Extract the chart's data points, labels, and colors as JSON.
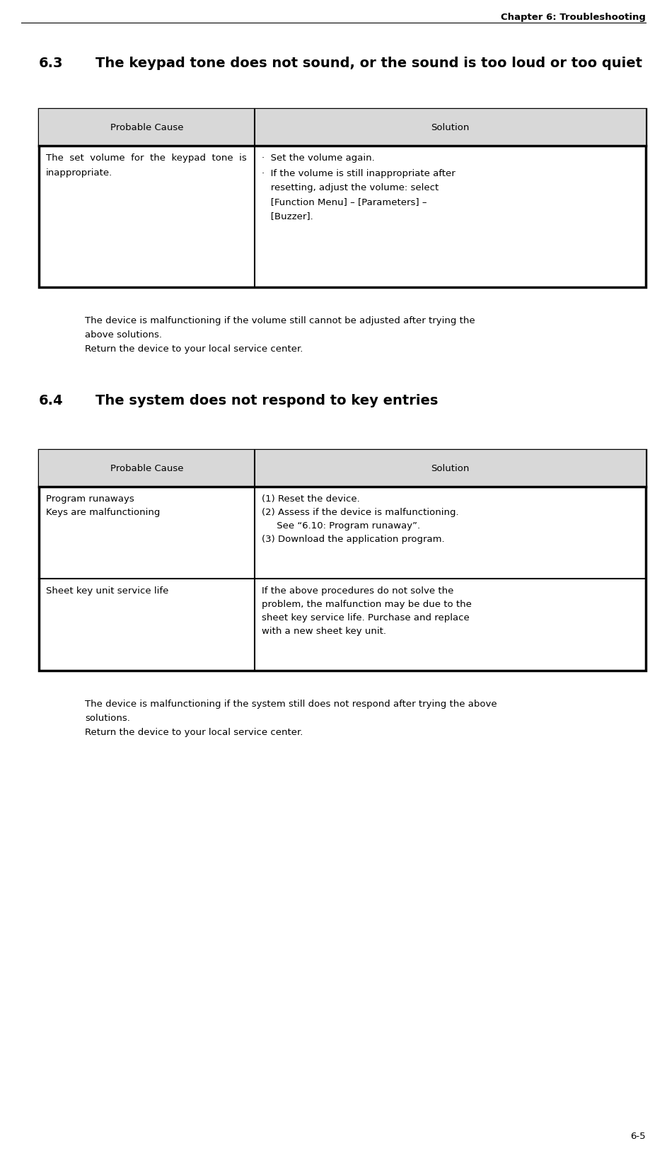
{
  "header_text": "Chapter 6: Troubleshooting",
  "page_number": "6-5",
  "section_63_number": "6.3",
  "section_63_title": "The keypad tone does not sound, or the sound is too loud or too quiet",
  "table1_header_cause": "Probable Cause",
  "table1_header_solution": "Solution",
  "table1_row1_cause": "The  set  volume  for  the  keypad  tone  is\ninappropriate.",
  "table1_row1_sol1": "·  Set the volume again.",
  "table1_row1_sol2": "·  If the volume is still inappropriate after\n   resetting, adjust the volume: select\n   [Function Menu] – [Parameters] –\n   [Buzzer].",
  "note1_line1": "The device is malfunctioning if the volume still cannot be adjusted after trying the",
  "note1_line2": "above solutions.",
  "note1_line3": "Return the device to your local service center.",
  "section_64_number": "6.4",
  "section_64_title": "The system does not respond to key entries",
  "table2_header_cause": "Probable Cause",
  "table2_header_solution": "Solution",
  "table2_row1_cause": "Program runaways\nKeys are malfunctioning",
  "table2_row1_solution": "(1) Reset the device.\n(2) Assess if the device is malfunctioning.\n     See “6.10: Program runaway”.\n(3) Download the application program.",
  "table2_row2_cause": "Sheet key unit service life",
  "table2_row2_solution": "If the above procedures do not solve the\nproblem, the malfunction may be due to the\nsheet key service life. Purchase and replace\nwith a new sheet key unit.",
  "note2_line1": "The device is malfunctioning if the system still does not respond after trying the above",
  "note2_line2": "solutions.",
  "note2_line3": "Return the device to your local service center.",
  "bg_color": "#ffffff",
  "text_color": "#000000",
  "border_color": "#000000",
  "header_bg": "#d8d8d8",
  "font_body": 9.5,
  "font_section": 14.0,
  "font_chapter": 9.5,
  "font_header": 9.5
}
